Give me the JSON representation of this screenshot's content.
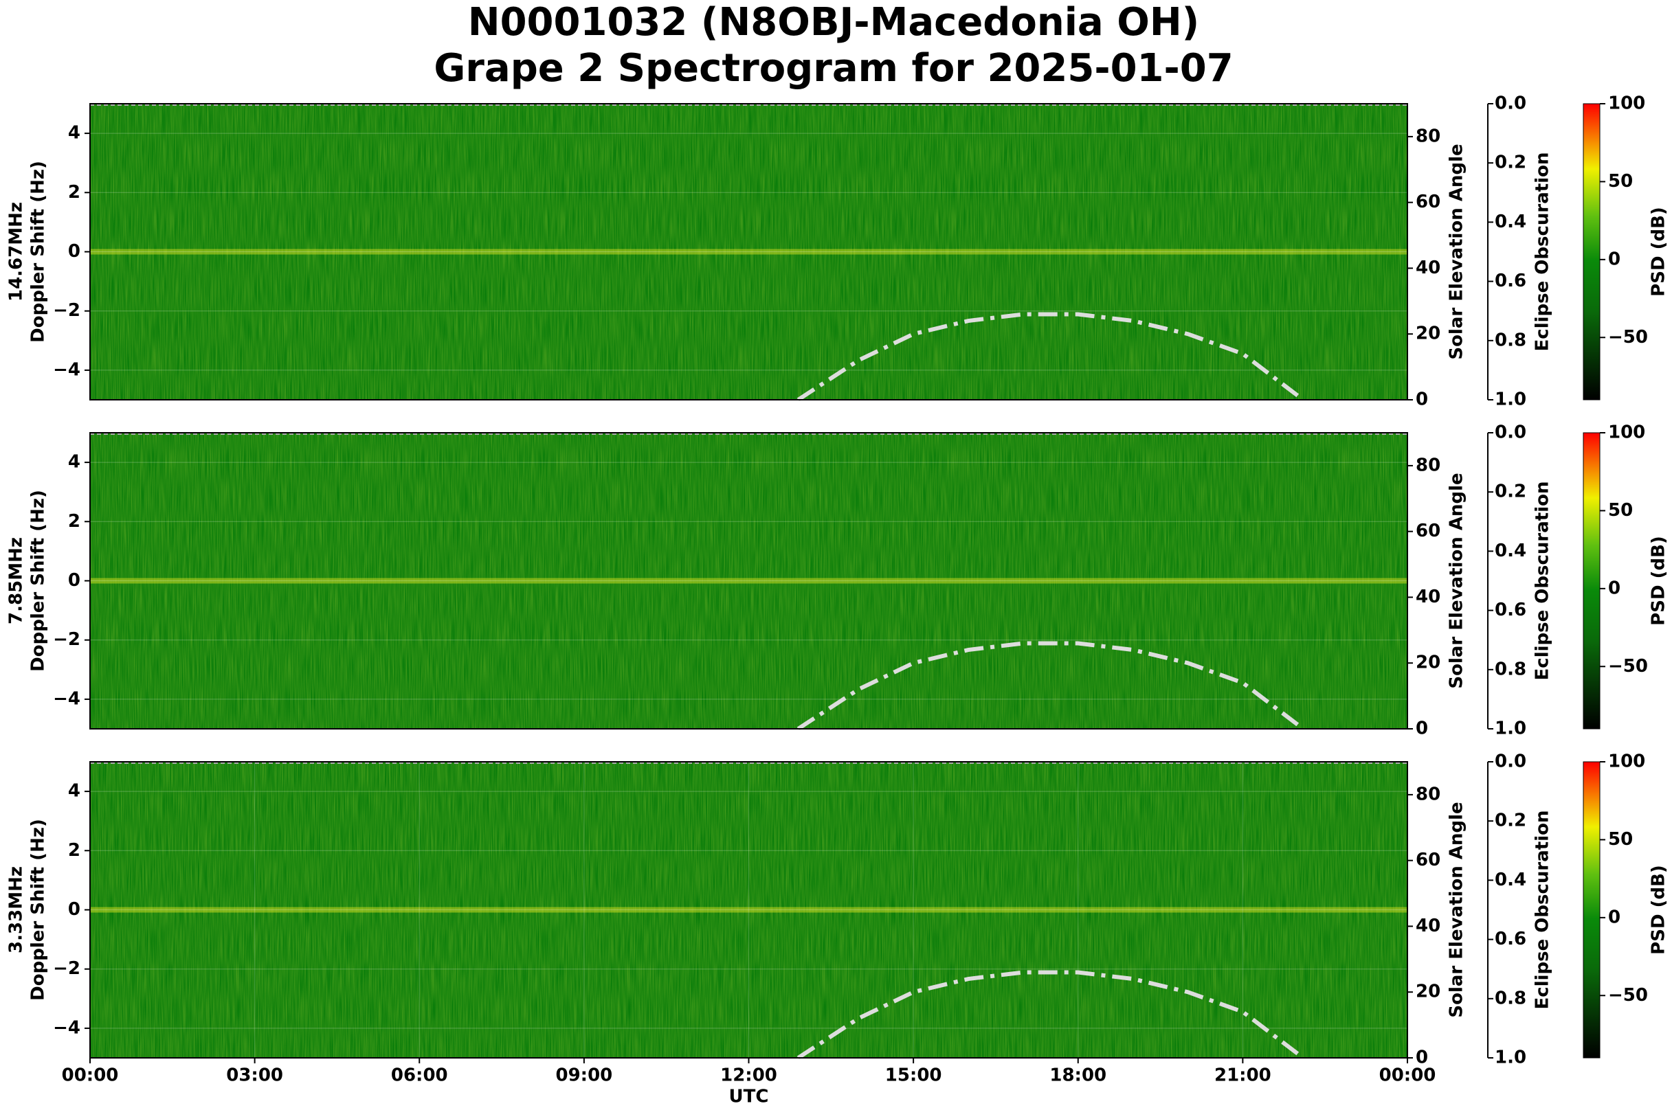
{
  "title": [
    "N0001032 (N8OBJ-Macedonia OH)",
    "Grape 2 Spectrogram for 2025-01-07"
  ],
  "chart_data": [
    {
      "type": "spectrogram",
      "ylabel": [
        "14.67MHz",
        "Doppler Shift (Hz)"
      ],
      "xlim": [
        0,
        24
      ],
      "ylim": [
        -5,
        5
      ],
      "yticks": [
        {
          "value": -4,
          "label": "−4"
        },
        {
          "value": -2,
          "label": "−2"
        },
        0,
        2,
        4
      ],
      "y2label": "Solar Elevation Angle",
      "y2lim": [
        0,
        90
      ],
      "y2ticks": [
        0,
        20,
        40,
        60,
        80
      ],
      "eclipse_label": "Eclipse Obscuration",
      "eclipse_lim": [
        1.0,
        0.0
      ],
      "eclipse_ticks": [
        {
          "value": 0.0,
          "label": "0.0"
        },
        {
          "value": 0.2,
          "label": "0.2"
        },
        {
          "value": 0.4,
          "label": "0.4"
        },
        {
          "value": 0.6,
          "label": "0.6"
        },
        {
          "value": 0.8,
          "label": "0.8"
        },
        {
          "value": 1.0,
          "label": "1.0"
        }
      ],
      "colorbar_label": "PSD (dB)",
      "clim": [
        -90,
        100
      ],
      "cticks": [
        {
          "value": -50,
          "label": "−50"
        },
        0,
        50,
        100
      ],
      "series": [
        {
          "name": "Solar Elevation Angle",
          "color": "#dddddd",
          "axis": "y2",
          "x": [
            12.9,
            14,
            15,
            16,
            17,
            17.5,
            18,
            19,
            20,
            21,
            22.1
          ],
          "values": [
            0,
            12,
            20,
            24,
            26,
            26,
            26,
            24,
            20,
            14,
            0
          ]
        }
      ]
    },
    {
      "type": "spectrogram",
      "ylabel": [
        "7.85MHz",
        "Doppler Shift (Hz)"
      ],
      "xlim": [
        0,
        24
      ],
      "ylim": [
        -5,
        5
      ],
      "yticks": [
        {
          "value": -4,
          "label": "−4"
        },
        {
          "value": -2,
          "label": "−2"
        },
        0,
        2,
        4
      ],
      "y2label": "Solar Elevation Angle",
      "y2lim": [
        0,
        90
      ],
      "y2ticks": [
        0,
        20,
        40,
        60,
        80
      ],
      "eclipse_label": "Eclipse Obscuration",
      "eclipse_lim": [
        1.0,
        0.0
      ],
      "eclipse_ticks": [
        {
          "value": 0.0,
          "label": "0.0"
        },
        {
          "value": 0.2,
          "label": "0.2"
        },
        {
          "value": 0.4,
          "label": "0.4"
        },
        {
          "value": 0.6,
          "label": "0.6"
        },
        {
          "value": 0.8,
          "label": "0.8"
        },
        {
          "value": 1.0,
          "label": "1.0"
        }
      ],
      "colorbar_label": "PSD (dB)",
      "clim": [
        -90,
        100
      ],
      "cticks": [
        {
          "value": -50,
          "label": "−50"
        },
        0,
        50,
        100
      ],
      "series": [
        {
          "name": "Solar Elevation Angle",
          "color": "#dddddd",
          "axis": "y2",
          "x": [
            12.9,
            14,
            15,
            16,
            17,
            17.5,
            18,
            19,
            20,
            21,
            22.1
          ],
          "values": [
            0,
            12,
            20,
            24,
            26,
            26,
            26,
            24,
            20,
            14,
            0
          ]
        }
      ]
    },
    {
      "type": "spectrogram",
      "ylabel": [
        "3.33MHz",
        "Doppler Shift (Hz)"
      ],
      "xlabel": "UTC",
      "xlim": [
        0,
        24
      ],
      "ylim": [
        -5,
        5
      ],
      "xticks": [
        {
          "value": 0,
          "label": "00:00"
        },
        {
          "value": 3,
          "label": "03:00"
        },
        {
          "value": 6,
          "label": "06:00"
        },
        {
          "value": 9,
          "label": "09:00"
        },
        {
          "value": 12,
          "label": "12:00"
        },
        {
          "value": 15,
          "label": "15:00"
        },
        {
          "value": 18,
          "label": "18:00"
        },
        {
          "value": 21,
          "label": "21:00"
        },
        {
          "value": 24,
          "label": "00:00"
        }
      ],
      "yticks": [
        {
          "value": -4,
          "label": "−4"
        },
        {
          "value": -2,
          "label": "−2"
        },
        0,
        2,
        4
      ],
      "y2label": "Solar Elevation Angle",
      "y2lim": [
        0,
        90
      ],
      "y2ticks": [
        0,
        20,
        40,
        60,
        80
      ],
      "eclipse_label": "Eclipse Obscuration",
      "eclipse_lim": [
        1.0,
        0.0
      ],
      "eclipse_ticks": [
        {
          "value": 0.0,
          "label": "0.0"
        },
        {
          "value": 0.2,
          "label": "0.2"
        },
        {
          "value": 0.4,
          "label": "0.4"
        },
        {
          "value": 0.6,
          "label": "0.6"
        },
        {
          "value": 0.8,
          "label": "0.8"
        },
        {
          "value": 1.0,
          "label": "1.0"
        }
      ],
      "colorbar_label": "PSD (dB)",
      "clim": [
        -90,
        100
      ],
      "cticks": [
        {
          "value": -50,
          "label": "−50"
        },
        0,
        50,
        100
      ],
      "series": [
        {
          "name": "Solar Elevation Angle",
          "color": "#dddddd",
          "axis": "y2",
          "x": [
            12.9,
            14,
            15,
            16,
            17,
            17.5,
            18,
            19,
            20,
            21,
            22.1
          ],
          "values": [
            0,
            12,
            20,
            24,
            26,
            26,
            26,
            24,
            20,
            14,
            0
          ]
        }
      ]
    }
  ]
}
